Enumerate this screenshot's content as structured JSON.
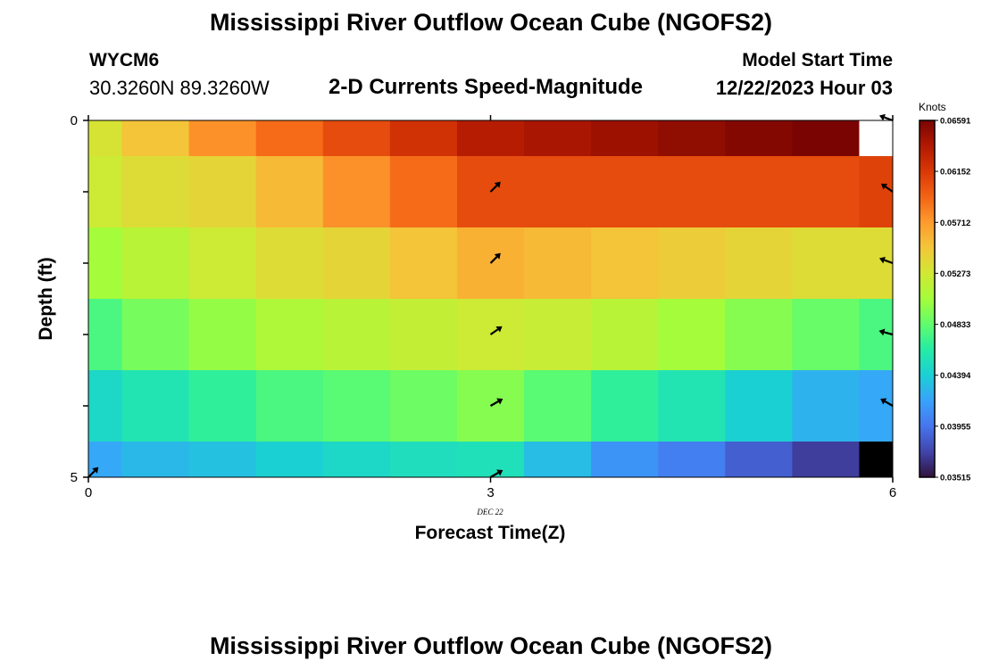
{
  "titles": {
    "main": "Mississippi River Outflow Ocean Cube (NGOFS2)",
    "main_repeat": "Mississippi River Outflow Ocean Cube (NGOFS2)",
    "station_id": "WYCM6",
    "station_coords": "30.3260N  89.3260W",
    "subtitle": "2-D Currents Speed-Magnitude",
    "model_start_label": "Model Start Time",
    "model_start_value": "12/22/2023 Hour 03"
  },
  "chart_data": {
    "type": "heatmap",
    "title": "2-D Currents Speed-Magnitude",
    "xlabel": "Forecast Time(Z)",
    "ylabel": "Depth (ft)",
    "x_ticks": [
      "0",
      "3",
      "6"
    ],
    "x_date_label": "DEC 22",
    "y_ticks": [
      "0",
      "5"
    ],
    "xlim": [
      0,
      6
    ],
    "ylim": [
      0,
      5
    ],
    "x_edges": [
      0,
      0.25,
      0.75,
      1.25,
      1.75,
      2.25,
      2.75,
      3.25,
      3.75,
      4.25,
      4.75,
      5.25,
      5.75,
      6
    ],
    "y_edges": [
      0,
      0.5,
      1.5,
      2.5,
      3.5,
      4.5,
      5
    ],
    "values": [
      [
        0.053,
        0.055,
        0.0575,
        0.059,
        0.0605,
        0.062,
        0.0635,
        0.064,
        0.0645,
        0.065,
        0.0655,
        0.066,
        null
      ],
      [
        0.0525,
        0.0535,
        0.054,
        0.0555,
        0.0575,
        0.059,
        0.0605,
        0.0605,
        0.0605,
        0.0605,
        0.0605,
        0.0605,
        0.061
      ],
      [
        0.0505,
        0.0515,
        0.0525,
        0.0535,
        0.054,
        0.055,
        0.056,
        0.0555,
        0.055,
        0.0545,
        0.054,
        0.0535,
        0.0535
      ],
      [
        0.0475,
        0.049,
        0.05,
        0.051,
        0.0515,
        0.052,
        0.0525,
        0.0522,
        0.0515,
        0.0505,
        0.0495,
        0.0485,
        0.0475
      ],
      [
        0.0445,
        0.0455,
        0.0465,
        0.0475,
        0.048,
        0.0487,
        0.0495,
        0.048,
        0.0465,
        0.0455,
        0.044,
        0.0425,
        0.042
      ],
      [
        0.042,
        0.0428,
        0.0432,
        0.044,
        0.0445,
        0.045,
        0.0452,
        0.043,
        0.041,
        0.04,
        0.0385,
        0.037,
        0.034
      ]
    ],
    "vectors": [
      {
        "x": 0,
        "y": 5,
        "angle": 315
      },
      {
        "x": 3,
        "y": 1,
        "angle": 315
      },
      {
        "x": 3,
        "y": 2,
        "angle": 315
      },
      {
        "x": 3,
        "y": 3,
        "angle": 325
      },
      {
        "x": 3,
        "y": 4,
        "angle": 330
      },
      {
        "x": 3,
        "y": 5,
        "angle": 330
      },
      {
        "x": 6,
        "y": 0,
        "angle": 200
      },
      {
        "x": 6,
        "y": 1,
        "angle": 215
      },
      {
        "x": 6,
        "y": 2,
        "angle": 200
      },
      {
        "x": 6,
        "y": 3,
        "angle": 195
      },
      {
        "x": 6,
        "y": 4,
        "angle": 210
      }
    ],
    "colorbar": {
      "label": "Knots",
      "min": 0.0351,
      "max": 0.0659,
      "tick_labels": [
        "0.06591",
        "0.06152",
        "0.05712",
        "0.05273",
        "0.04833",
        "0.04394",
        "0.03955",
        "0.03515"
      ],
      "tick_values": [
        0.06591,
        0.06152,
        0.05712,
        0.05273,
        0.04833,
        0.04394,
        0.03955,
        0.03515
      ],
      "colormap": [
        "#30123b",
        "#4145ab",
        "#4675ed",
        "#39a2fc",
        "#1bcfd4",
        "#24eca6",
        "#61fc6c",
        "#a4fc3b",
        "#d1e834",
        "#f3c63a",
        "#fe9b2d",
        "#f36315",
        "#d93806",
        "#b11901",
        "#7a0402"
      ]
    }
  }
}
